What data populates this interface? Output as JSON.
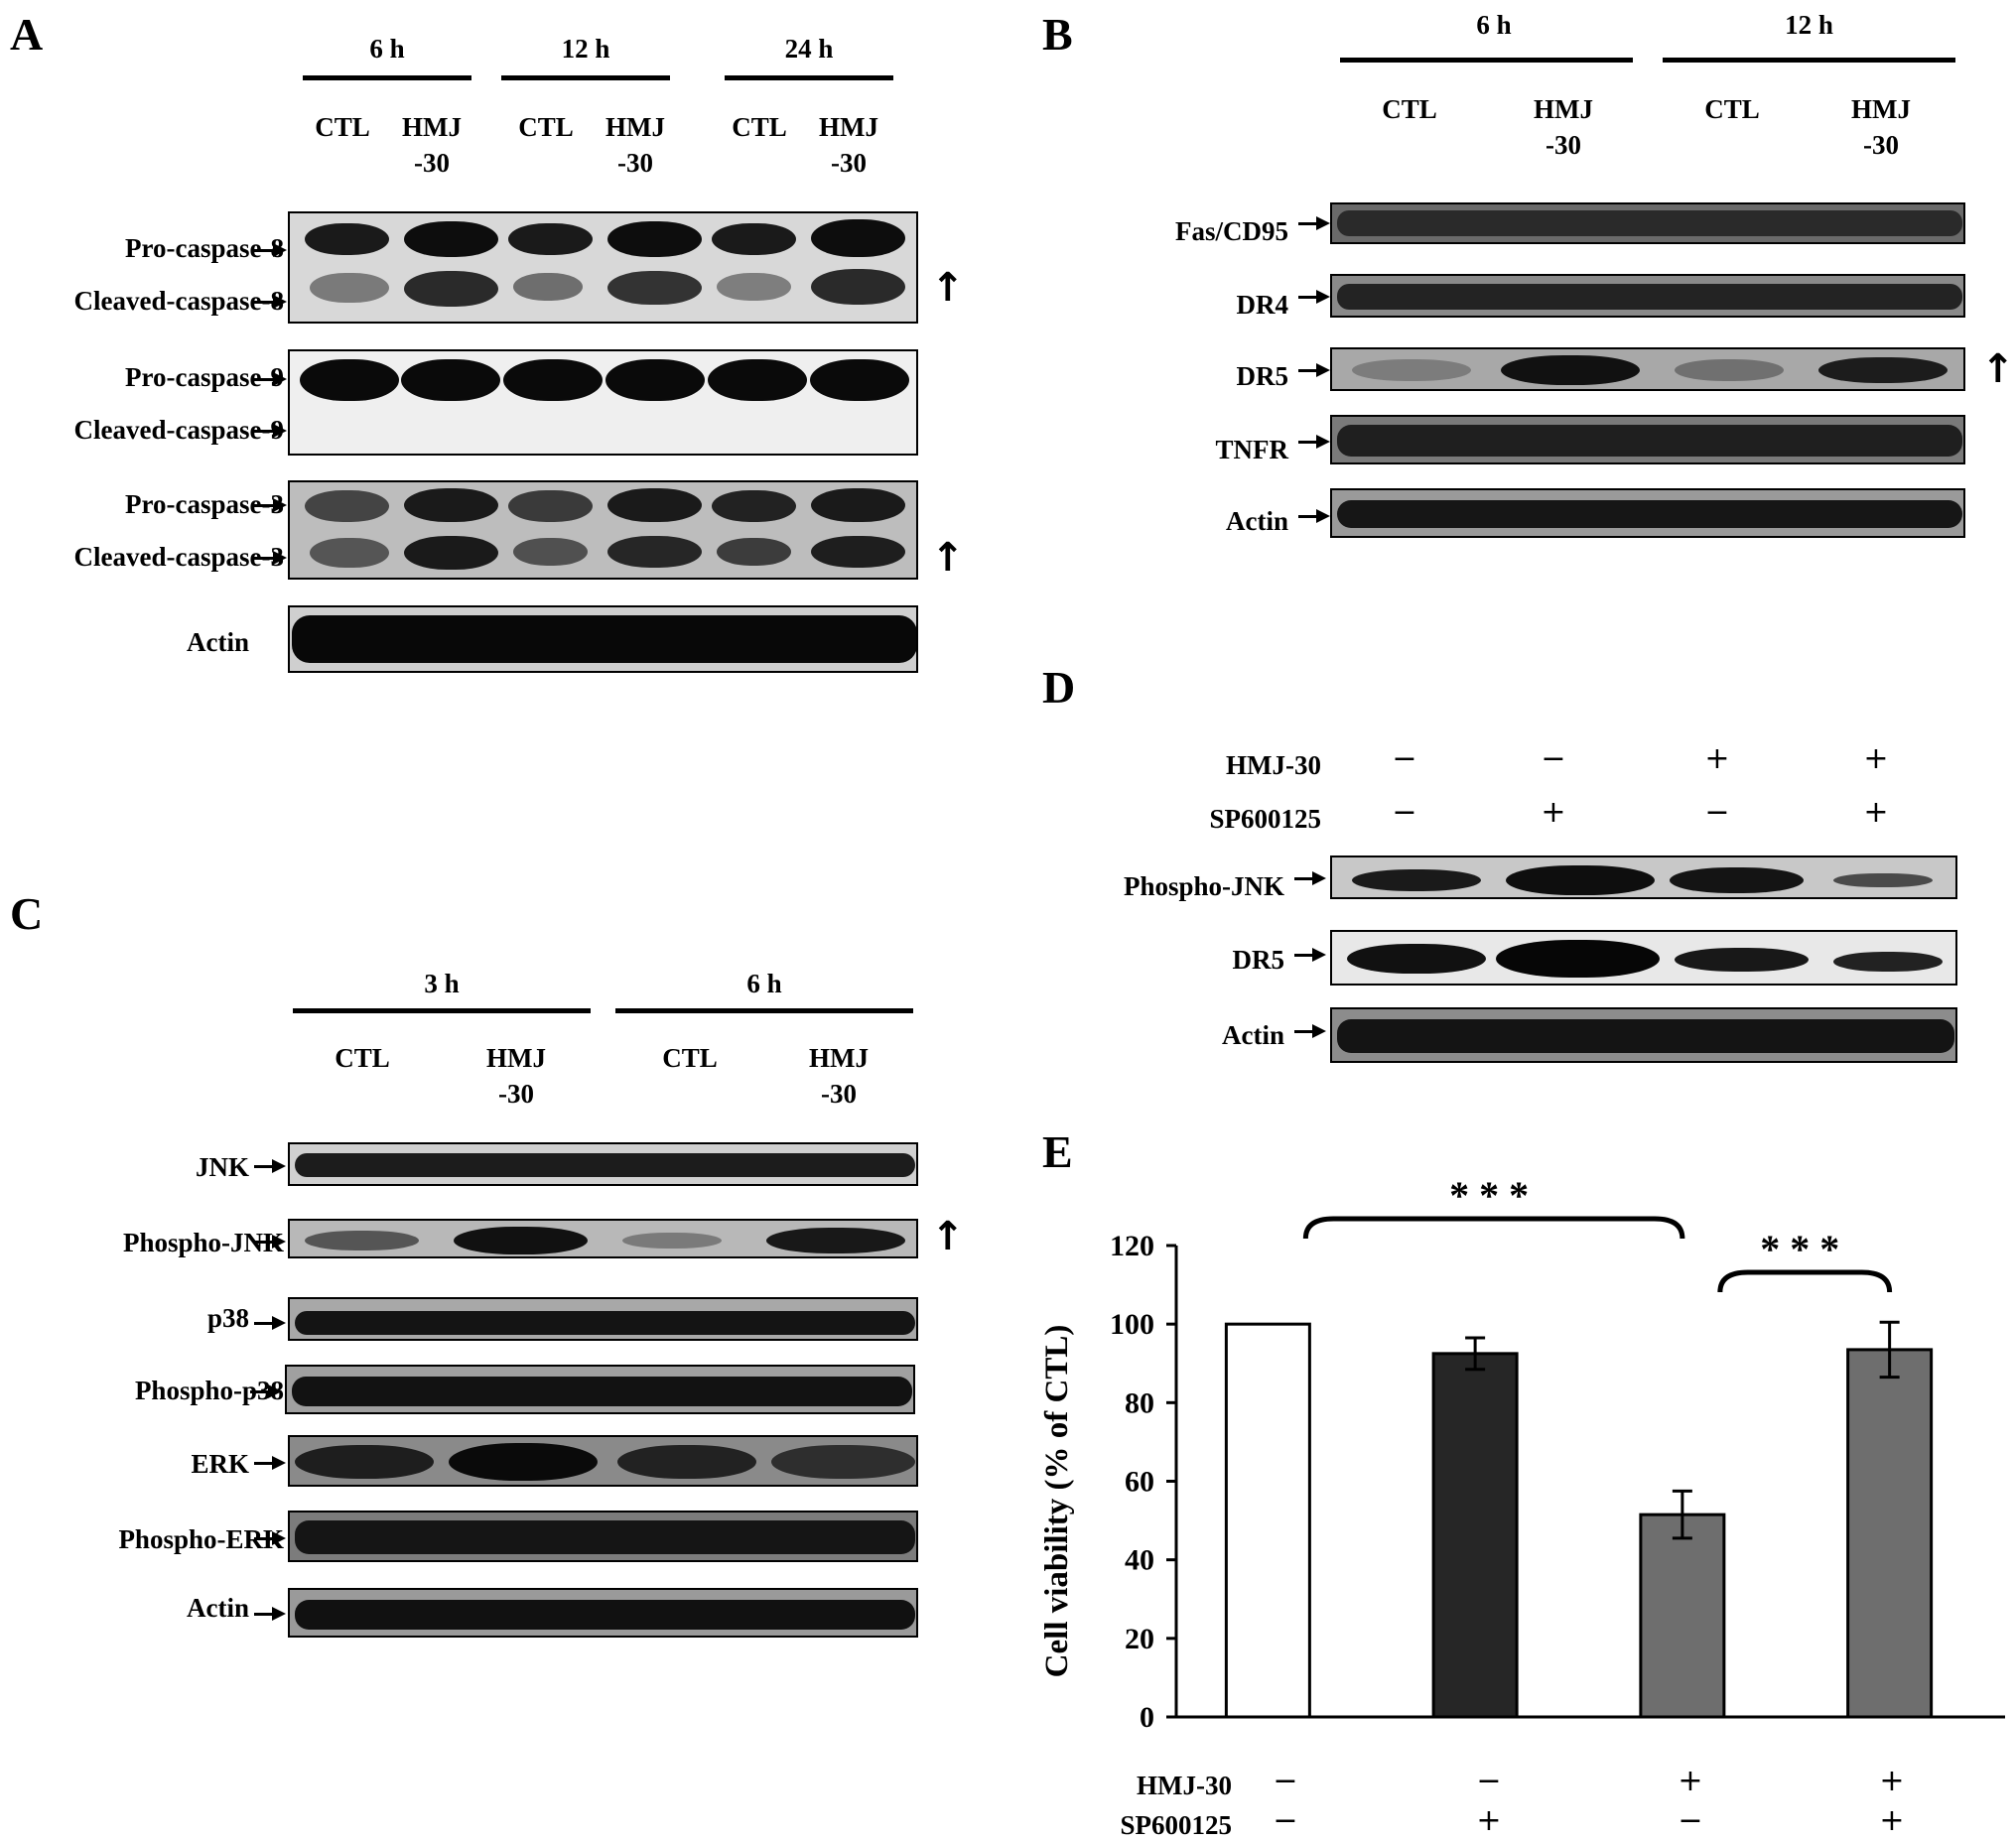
{
  "panels": {
    "A": {
      "letter": "A",
      "time_headers": [
        "6 h",
        "12 h",
        "24 h"
      ],
      "lanes": [
        "CTL",
        "HMJ\n-30",
        "CTL",
        "HMJ\n-30",
        "CTL",
        "HMJ\n-30"
      ],
      "labels": {
        "pro_casp8": "Pro-caspase-8",
        "cl_casp8": "Cleaved-caspase-8",
        "pro_casp9": "Pro-caspase-9",
        "cl_casp9": "Cleaved-caspase-9",
        "pro_casp3": "Pro-caspase-3",
        "cl_casp3": "Cleaved-caspase-3",
        "actin": "Actin"
      },
      "up_arrow": "↑"
    },
    "B": {
      "letter": "B",
      "time_headers": [
        "6 h",
        "12 h"
      ],
      "lanes": [
        "CTL",
        "HMJ\n-30",
        "CTL",
        "HMJ\n-30"
      ],
      "labels": {
        "fas": "Fas/CD95",
        "dr4": "DR4",
        "dr5": "DR5",
        "tnfr": "TNFR",
        "actin": "Actin"
      },
      "up_arrow": "↑"
    },
    "C": {
      "letter": "C",
      "time_headers": [
        "3 h",
        "6 h"
      ],
      "lanes": [
        "CTL",
        "HMJ\n-30",
        "CTL",
        "HMJ\n-30"
      ],
      "labels": {
        "jnk": "JNK",
        "pjnk": "Phospho-JNK",
        "p38": "p38",
        "pp38": "Phospho-p38",
        "erk": "ERK",
        "perk": "Phospho-ERK",
        "actin": "Actin"
      },
      "up_arrow": "↑"
    },
    "D": {
      "letter": "D",
      "treatments": [
        {
          "name": "HMJ-30",
          "signs": [
            "−",
            "−",
            "+",
            "+"
          ]
        },
        {
          "name": "SP600125",
          "signs": [
            "−",
            "+",
            "−",
            "+"
          ]
        }
      ],
      "labels": {
        "pjnk": "Phospho-JNK",
        "dr5": "DR5",
        "actin": "Actin"
      }
    },
    "E": {
      "letter": "E",
      "treatments": [
        {
          "name": "HMJ-30",
          "signs": [
            "−",
            "−",
            "+",
            "+"
          ]
        },
        {
          "name": "SP600125",
          "signs": [
            "−",
            "+",
            "−",
            "+"
          ]
        }
      ]
    }
  },
  "chart_data": {
    "type": "bar",
    "title": "",
    "xlabel": "",
    "ylabel": "Cell viability (% of CTL)",
    "ylim": [
      0,
      120
    ],
    "yticks": [
      0,
      20,
      40,
      60,
      80,
      100,
      120
    ],
    "categories": [
      "CTL",
      "SP600125",
      "HMJ-30",
      "HMJ-30 + SP600125"
    ],
    "values": [
      100,
      92.5,
      51.5,
      93.5
    ],
    "errors": [
      0,
      4,
      6,
      7
    ],
    "bar_colors": [
      "#ffffff",
      "#262626",
      "#6e6e6e",
      "#6e6e6e"
    ],
    "significance": [
      {
        "from": 0,
        "to": 2,
        "label": "***"
      },
      {
        "from": 2,
        "to": 3,
        "label": "***"
      }
    ]
  }
}
